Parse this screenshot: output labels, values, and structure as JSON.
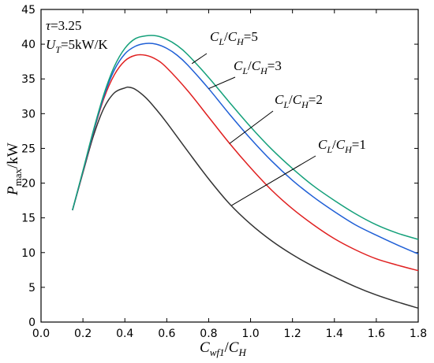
{
  "chart_data": {
    "type": "line",
    "xlabel": {
      "main": "C",
      "sub": "wf1",
      "slash": "/",
      "main2": "C",
      "sub2": "H"
    },
    "ylabel": {
      "main": "P",
      "sub": "max",
      "rest": "/kW"
    },
    "xlim": [
      0.0,
      1.8
    ],
    "ylim": [
      0,
      45
    ],
    "xticks": [
      0.0,
      0.2,
      0.4,
      0.6,
      0.8,
      1.0,
      1.2,
      1.4,
      1.6,
      1.8
    ],
    "xtick_labels": [
      "0.0",
      "0.2",
      "0.4",
      "0.6",
      "0.8",
      "1.0",
      "1.2",
      "1.4",
      "1.6",
      "1.8"
    ],
    "yticks": [
      0,
      5,
      10,
      15,
      20,
      25,
      30,
      35,
      40,
      45
    ],
    "ytick_labels": [
      "0",
      "5",
      "10",
      "15",
      "20",
      "25",
      "30",
      "35",
      "40",
      "45"
    ],
    "grid": false,
    "parameters": [
      {
        "symbol": "τ",
        "sub": "",
        "value": "=3.25"
      },
      {
        "symbol": "U",
        "sub": "T",
        "value": "=5kW/K"
      }
    ],
    "series": [
      {
        "name": "CL/CH=1",
        "color": "#333333",
        "label_value": "=1",
        "x": [
          0.15,
          0.2,
          0.25,
          0.3,
          0.35,
          0.4,
          0.42,
          0.45,
          0.5,
          0.55,
          0.6,
          0.7,
          0.8,
          0.9,
          1.0,
          1.1,
          1.2,
          1.3,
          1.4,
          1.5,
          1.6,
          1.7,
          1.8
        ],
        "y": [
          16.1,
          21.5,
          26.8,
          30.8,
          33.0,
          33.7,
          33.8,
          33.5,
          32.3,
          30.6,
          28.7,
          24.6,
          20.6,
          17.0,
          14.1,
          11.7,
          9.7,
          8.0,
          6.5,
          5.1,
          3.9,
          2.9,
          2.0
        ]
      },
      {
        "name": "CL/CH=2",
        "color": "#e02020",
        "label_value": "=2",
        "x": [
          0.15,
          0.2,
          0.25,
          0.3,
          0.35,
          0.4,
          0.45,
          0.5,
          0.55,
          0.6,
          0.7,
          0.8,
          0.9,
          1.0,
          1.1,
          1.2,
          1.3,
          1.4,
          1.5,
          1.6,
          1.7,
          1.8
        ],
        "y": [
          16.1,
          21.6,
          27.3,
          32.2,
          35.6,
          37.6,
          38.4,
          38.4,
          37.8,
          36.6,
          33.3,
          29.5,
          25.7,
          22.2,
          19.0,
          16.3,
          14.0,
          12.0,
          10.4,
          9.1,
          8.2,
          7.4
        ]
      },
      {
        "name": "CL/CH=3",
        "color": "#1f5fd6",
        "label_value": "=3",
        "x": [
          0.15,
          0.2,
          0.25,
          0.3,
          0.35,
          0.4,
          0.45,
          0.5,
          0.55,
          0.6,
          0.65,
          0.7,
          0.8,
          0.9,
          1.0,
          1.1,
          1.2,
          1.3,
          1.4,
          1.5,
          1.6,
          1.7,
          1.8
        ],
        "y": [
          16.1,
          21.7,
          27.4,
          32.5,
          36.3,
          38.6,
          39.7,
          40.1,
          40.0,
          39.4,
          38.4,
          37.0,
          33.6,
          29.9,
          26.4,
          23.2,
          20.4,
          18.0,
          15.9,
          14.0,
          12.5,
          11.1,
          9.8
        ]
      },
      {
        "name": "CL/CH=5",
        "color": "#14a07a",
        "label_value": "=5",
        "x": [
          0.15,
          0.2,
          0.25,
          0.3,
          0.35,
          0.4,
          0.45,
          0.5,
          0.55,
          0.6,
          0.65,
          0.7,
          0.8,
          0.9,
          1.0,
          1.1,
          1.2,
          1.3,
          1.4,
          1.5,
          1.6,
          1.7,
          1.8
        ],
        "y": [
          16.1,
          21.8,
          27.6,
          32.8,
          36.8,
          39.4,
          40.8,
          41.2,
          41.2,
          40.7,
          39.8,
          38.5,
          35.2,
          31.6,
          28.1,
          24.9,
          22.1,
          19.6,
          17.5,
          15.6,
          14.0,
          12.8,
          11.9
        ]
      }
    ],
    "annotations": [
      {
        "series": 3,
        "main": "C",
        "sub": "L",
        "main2": "C",
        "sub2": "H",
        "value": "=5",
        "arrow_to": [
          0.72,
          37.2
        ]
      },
      {
        "series": 2,
        "main": "C",
        "sub": "L",
        "main2": "C",
        "sub2": "H",
        "value": "=3",
        "arrow_to": [
          0.8,
          33.6
        ]
      },
      {
        "series": 1,
        "main": "C",
        "sub": "L",
        "main2": "C",
        "sub2": "H",
        "value": "=2",
        "arrow_to": [
          0.9,
          25.7
        ]
      },
      {
        "series": 0,
        "main": "C",
        "sub": "L",
        "main2": "C",
        "sub2": "H",
        "value": "=1",
        "arrow_to": [
          0.91,
          16.8
        ]
      }
    ]
  }
}
